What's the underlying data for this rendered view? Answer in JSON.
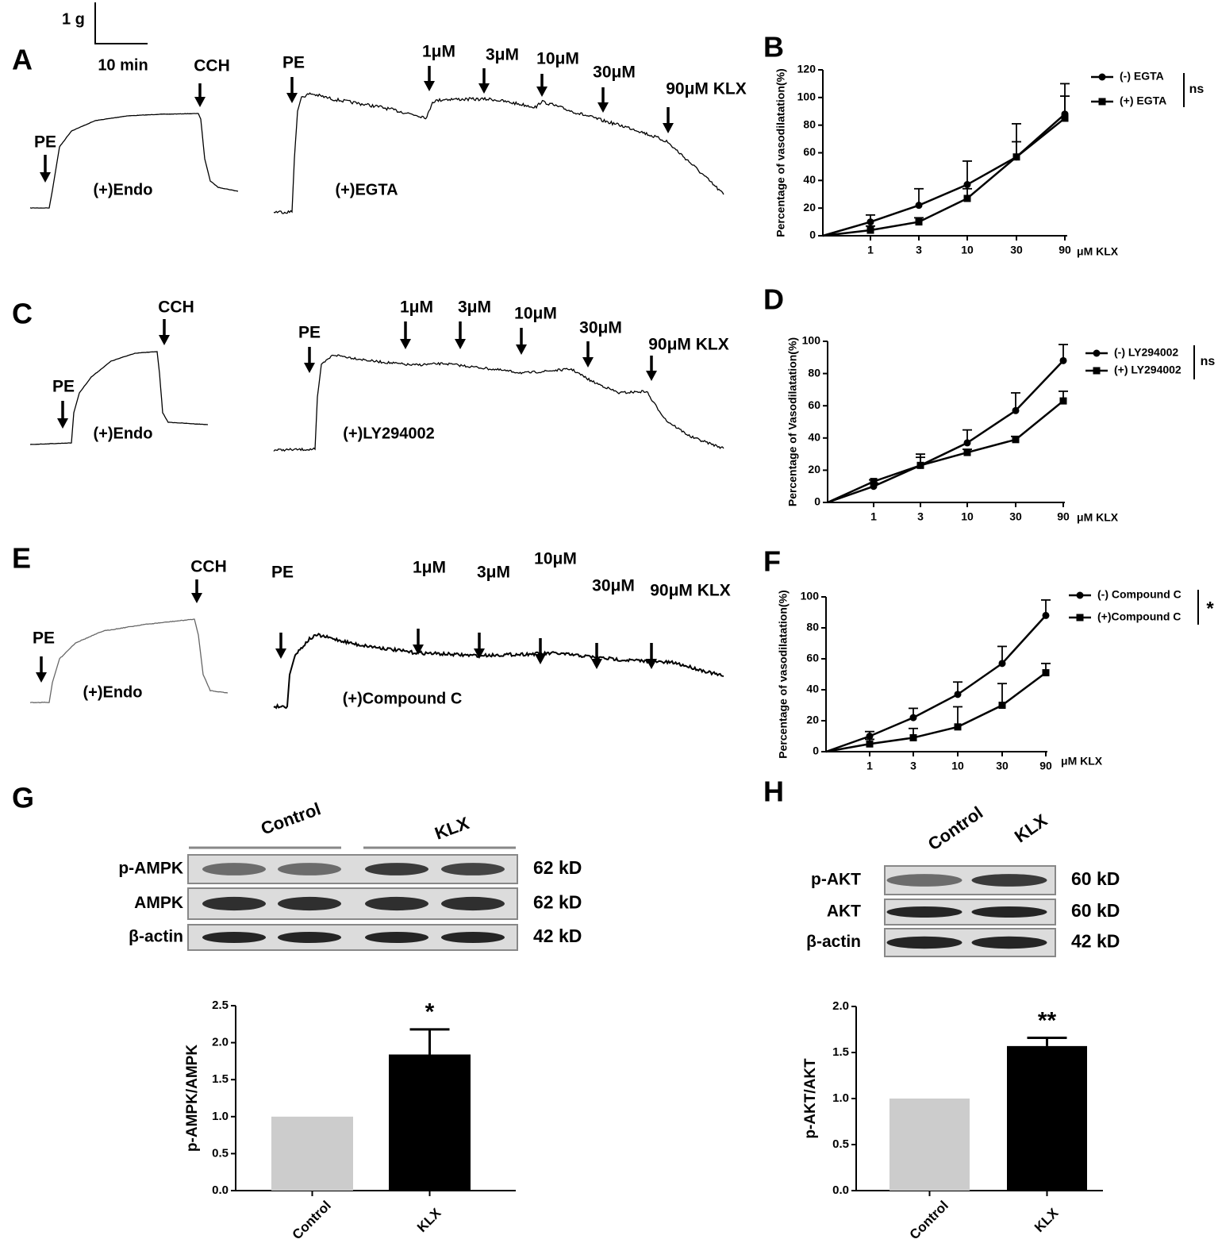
{
  "scale_bar": {
    "y": "1 g",
    "x": "10 min"
  },
  "panel_labels": [
    "A",
    "B",
    "C",
    "D",
    "E",
    "F",
    "G",
    "H"
  ],
  "traces": [
    {
      "condition": "(+)Endo",
      "arrows": [
        "PE",
        "CCH"
      ]
    },
    {
      "condition": "(+)EGTA",
      "arrows": [
        "PE",
        "1μM",
        "3μM",
        "10μM",
        "30μM",
        "90μM KLX"
      ]
    },
    {
      "condition": "(+)Endo",
      "arrows": [
        "PE",
        "CCH"
      ]
    },
    {
      "condition": "(+)LY294002",
      "arrows": [
        "PE",
        "1μM",
        "3μM",
        "10μM",
        "30μM",
        "90μM KLX"
      ]
    },
    {
      "condition": "(+)Endo",
      "arrows": [
        "PE",
        "CCH"
      ]
    },
    {
      "condition": "(+)Compound C",
      "arrows": [
        "PE",
        "1μM",
        "3μM",
        "10μM",
        "30μM",
        "90μM KLX"
      ]
    }
  ],
  "blots": [
    {
      "groups": [
        "Control",
        "KLX"
      ],
      "rows": [
        {
          "name": "p-AMPK",
          "size": "62 kD"
        },
        {
          "name": "AMPK",
          "size": "62 kD"
        },
        {
          "name": "β-actin",
          "size": "42 kD"
        }
      ]
    },
    {
      "groups": [
        "Control",
        "KLX"
      ],
      "rows": [
        {
          "name": "p-AKT",
          "size": "60 kD"
        },
        {
          "name": "AKT",
          "size": "60 kD"
        },
        {
          "name": "β-actin",
          "size": "42 kD"
        }
      ]
    }
  ],
  "chart_data": [
    {
      "type": "line",
      "y_label": "Percentage of vasodilatation(%)",
      "x_label": "μM KLX",
      "categories": [
        null,
        "1",
        "3",
        "10",
        "30",
        "90"
      ],
      "ylim": [
        0,
        120
      ],
      "yticks": [
        0,
        20,
        40,
        60,
        80,
        100,
        120
      ],
      "annotation": "ns",
      "series": [
        {
          "name": "(-) EGTA",
          "color": "#000000",
          "marker": "circle",
          "values": [
            0,
            10,
            22,
            37,
            57,
            88
          ],
          "errors": [
            0,
            5,
            12,
            17,
            24,
            22
          ]
        },
        {
          "name": "(+) EGTA",
          "color": "#000000",
          "marker": "square",
          "values": [
            0,
            4,
            10,
            27,
            57,
            85
          ],
          "errors": [
            0,
            3,
            3,
            7,
            11,
            16
          ]
        }
      ]
    },
    {
      "type": "line",
      "y_label": "Percentage of Vasodilatation(%)",
      "x_label": "μM KLX",
      "categories": [
        null,
        "1",
        "3",
        "10",
        "30",
        "90"
      ],
      "ylim": [
        0,
        100
      ],
      "yticks": [
        0,
        20,
        40,
        60,
        80,
        100
      ],
      "annotation": "ns",
      "series": [
        {
          "name": "(-) LY294002",
          "color": "#000000",
          "marker": "circle",
          "values": [
            0,
            10,
            23,
            37,
            57,
            88
          ],
          "errors": [
            0,
            2,
            5,
            8,
            11,
            10
          ]
        },
        {
          "name": "(+) LY294002",
          "color": "#000000",
          "marker": "square",
          "values": [
            0,
            13,
            23,
            31,
            39,
            63
          ],
          "errors": [
            0,
            1,
            7,
            2,
            2,
            6
          ]
        }
      ]
    },
    {
      "type": "line",
      "y_label": "Percentage of vasodilatation(%)",
      "x_label": "μM KLX",
      "categories": [
        null,
        "1",
        "3",
        "10",
        "30",
        "90"
      ],
      "ylim": [
        0,
        100
      ],
      "yticks": [
        0,
        20,
        40,
        60,
        80,
        100
      ],
      "annotation": "*",
      "series": [
        {
          "name": "(-) Compound C",
          "color": "#000000",
          "marker": "circle",
          "values": [
            0,
            10,
            22,
            37,
            57,
            88
          ],
          "errors": [
            0,
            3,
            6,
            8,
            11,
            10
          ]
        },
        {
          "name": "(+)Compound C",
          "color": "#000000",
          "marker": "square",
          "values": [
            0,
            5,
            9,
            16,
            30,
            51
          ],
          "errors": [
            0,
            3,
            6,
            13,
            14,
            6
          ]
        }
      ]
    },
    {
      "type": "bar",
      "y_label": "p-AMPK/AMPK",
      "categories": [
        "Control",
        "KLX"
      ],
      "values": [
        1.0,
        1.84
      ],
      "errors": [
        0,
        0.34
      ],
      "colors": [
        "#cccccc",
        "#000000"
      ],
      "ylim": [
        0,
        2.5
      ],
      "yticks": [
        {
          "value": 0,
          "label": "0.0"
        },
        0.5,
        {
          "value": 1,
          "label": "1.0"
        },
        1.5,
        {
          "value": 2,
          "label": "2.0"
        },
        2.5
      ],
      "annotation": "*"
    },
    {
      "type": "bar",
      "y_label": "p-AKT/AKT",
      "categories": [
        "Control",
        "KLX"
      ],
      "values": [
        1.0,
        1.57
      ],
      "errors": [
        0,
        0.09
      ],
      "colors": [
        "#cccccc",
        "#000000"
      ],
      "ylim": [
        0,
        2.0
      ],
      "yticks": [
        {
          "value": 0,
          "label": "0.0"
        },
        0.5,
        {
          "value": 1,
          "label": "1.0"
        },
        1.5,
        {
          "value": 2,
          "label": "2.0"
        }
      ],
      "annotation": "**"
    }
  ]
}
